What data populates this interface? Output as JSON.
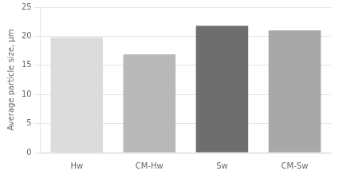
{
  "chart_data": {
    "type": "bar",
    "categories": [
      "Hw",
      "CM-Hw",
      "Sw",
      "CM-Sw"
    ],
    "values": [
      19.8,
      16.9,
      21.8,
      21.0
    ],
    "colors": [
      "#dcdcdc",
      "#b8b8b8",
      "#6e6e6e",
      "#a8a8a8"
    ],
    "ylabel": "Average particle size, μm",
    "ylim": [
      0,
      25
    ],
    "yticks": [
      0,
      5,
      10,
      15,
      20,
      25
    ],
    "grid": true
  }
}
